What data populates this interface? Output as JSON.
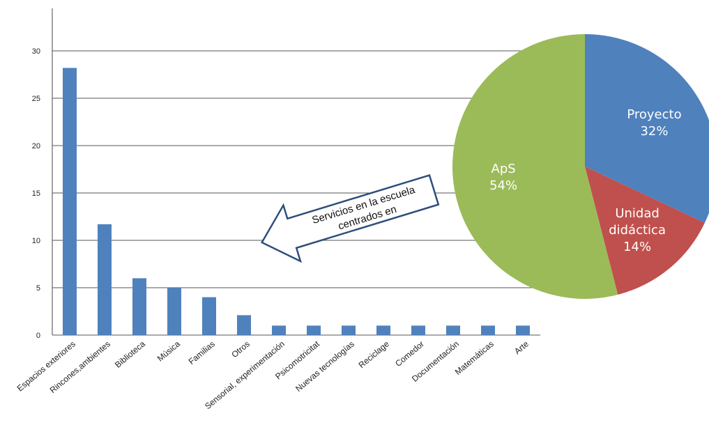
{
  "charts": {
    "bar": {
      "type": "bar",
      "categories": [
        "Espacios exteriores",
        "Rincones,ambientes",
        "Biblioteca",
        "Música",
        "Familias",
        "Otros",
        "Sensorial, experimentación",
        "Psicomotricitat",
        "Nuevas tecnologías",
        "Reciclage",
        "Comedor",
        "Documentación",
        "Matemáticas",
        "Arte"
      ],
      "values": [
        28.2,
        11.7,
        6,
        5,
        4,
        2.1,
        1,
        1,
        1,
        1,
        1,
        1,
        1,
        1
      ],
      "ylim": [
        0,
        35
      ],
      "yticks": [
        "0",
        "5",
        "10",
        "15",
        "20",
        "25",
        "30"
      ],
      "grid": true,
      "colors": {
        "bar": "#4f81bd"
      }
    },
    "pie": {
      "type": "pie",
      "slices": [
        {
          "label_line1": "Proyecto",
          "label_line2": "",
          "pct": "32%",
          "value": 32,
          "color": "#4f81bd"
        },
        {
          "label_line1": "Unidad",
          "label_line2": "didáctica",
          "pct": "14%",
          "value": 14,
          "color": "#c0504d"
        },
        {
          "label_line1": "ApS",
          "label_line2": "",
          "pct": "54%",
          "value": 54,
          "color": "#9bbb59"
        }
      ]
    }
  },
  "callout": {
    "line1": "Servicios en la escuela",
    "line2": "centrados en"
  }
}
